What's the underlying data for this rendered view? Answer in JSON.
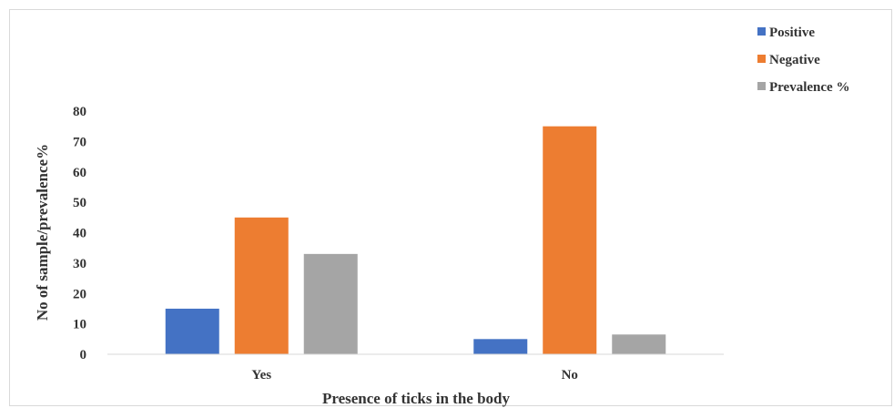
{
  "chart_data": {
    "type": "bar",
    "title": "",
    "xlabel": "Presence of ticks in the body",
    "ylabel": "No of sample/prevalence%",
    "categories": [
      "Yes",
      "No"
    ],
    "ylim": [
      0,
      80
    ],
    "yticks": [
      0,
      10,
      20,
      30,
      40,
      50,
      60,
      70,
      80
    ],
    "grid": false,
    "legend_position": "top-right",
    "series": [
      {
        "name": "Positive",
        "color": "#4472c4",
        "values": [
          15,
          5
        ]
      },
      {
        "name": "Negative",
        "color": "#ed7d31",
        "values": [
          45,
          75
        ]
      },
      {
        "name": "Prevalence %",
        "color": "#a5a5a5",
        "values": [
          33,
          6.5
        ]
      }
    ]
  }
}
